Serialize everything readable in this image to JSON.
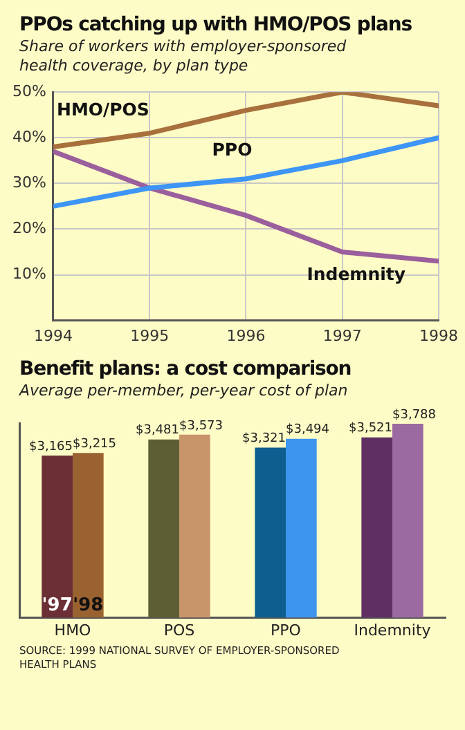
{
  "chart_data": [
    {
      "type": "line",
      "title": "PPOs catching up with HMO/POS plans",
      "subtitle": "Share of workers with employer-sponsored health coverage, by plan type",
      "x": [
        1994,
        1995,
        1996,
        1997,
        1998
      ],
      "xlim": [
        1994,
        1998
      ],
      "xticks": [
        1994,
        1995,
        1996,
        1997,
        1998
      ],
      "ylim": [
        0,
        50
      ],
      "yticks": [
        {
          "value": 10,
          "label": "10%"
        },
        {
          "value": 20,
          "label": "20%"
        },
        {
          "value": 30,
          "label": "30%"
        },
        {
          "value": 40,
          "label": "40%"
        },
        {
          "value": 50,
          "label": "50%"
        }
      ],
      "grid": true,
      "legend": false,
      "marker": "none",
      "line_style": "solid",
      "series": [
        {
          "name": "HMO/POS",
          "color": "#a8703c",
          "values": [
            38,
            41,
            46,
            50,
            47
          ]
        },
        {
          "name": "PPO",
          "color": "#3d95f5",
          "values": [
            25,
            29,
            31,
            35,
            40
          ]
        },
        {
          "name": "Indemnity",
          "color": "#9a5f9c",
          "values": [
            37,
            29,
            23,
            15,
            13
          ]
        }
      ]
    },
    {
      "type": "bar",
      "title": "Benefit plans: a cost comparison",
      "subtitle": "Average per-member, per-year cost of plan",
      "categories": [
        "HMO",
        "POS",
        "PPO",
        "Indemnity"
      ],
      "ylim": [
        0,
        3800
      ],
      "tick_labels": "x",
      "grid": false,
      "legend": false,
      "data_labels": true,
      "series": [
        {
          "name": "'97",
          "colors": [
            "#6b2f35",
            "#5b5f33",
            "#0e5f8f",
            "#5f2f63"
          ],
          "values": [
            3165,
            3481,
            3321,
            3521
          ],
          "value_labels": [
            "$3,165",
            "$3,481",
            "$3,321",
            "$3,521"
          ]
        },
        {
          "name": "'98",
          "colors": [
            "#9a6230",
            "#c8956a",
            "#3d95f0",
            "#9a6aa0"
          ],
          "values": [
            3215,
            3573,
            3494,
            3788
          ],
          "value_labels": [
            "$3,215",
            "$3,573",
            "$3,494",
            "$3,788"
          ]
        }
      ],
      "annotations": [
        "SOURCE: 1999 NATIONAL SURVEY OF EMPLOYER-SPONSORED HEALTH PLANS"
      ]
    }
  ]
}
